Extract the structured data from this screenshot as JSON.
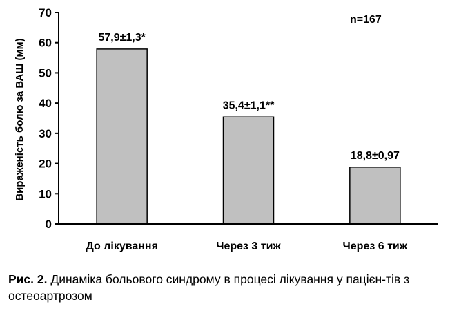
{
  "chart_data": {
    "type": "bar",
    "categories": [
      "До лікування",
      "Через 3 тиж",
      "Через 6 тиж"
    ],
    "values": [
      57.9,
      35.4,
      18.8
    ],
    "data_labels": [
      "57,9±1,3*",
      "35,4±1,1**",
      "18,8±0,97"
    ],
    "ylabel": "Вираженість болю за ВАШ (мм)",
    "xlabel": "",
    "ylim": [
      0,
      70
    ],
    "yticks": [
      0,
      10,
      20,
      30,
      40,
      50,
      60,
      70
    ],
    "annotation": "n=167",
    "bar_color": "#c0c0c0",
    "grid": false
  },
  "caption": {
    "lead": "Рис. 2.",
    "text": " Динаміка больового синдрому в процесі лікування у пацієн-тів з остеоартрозом"
  }
}
